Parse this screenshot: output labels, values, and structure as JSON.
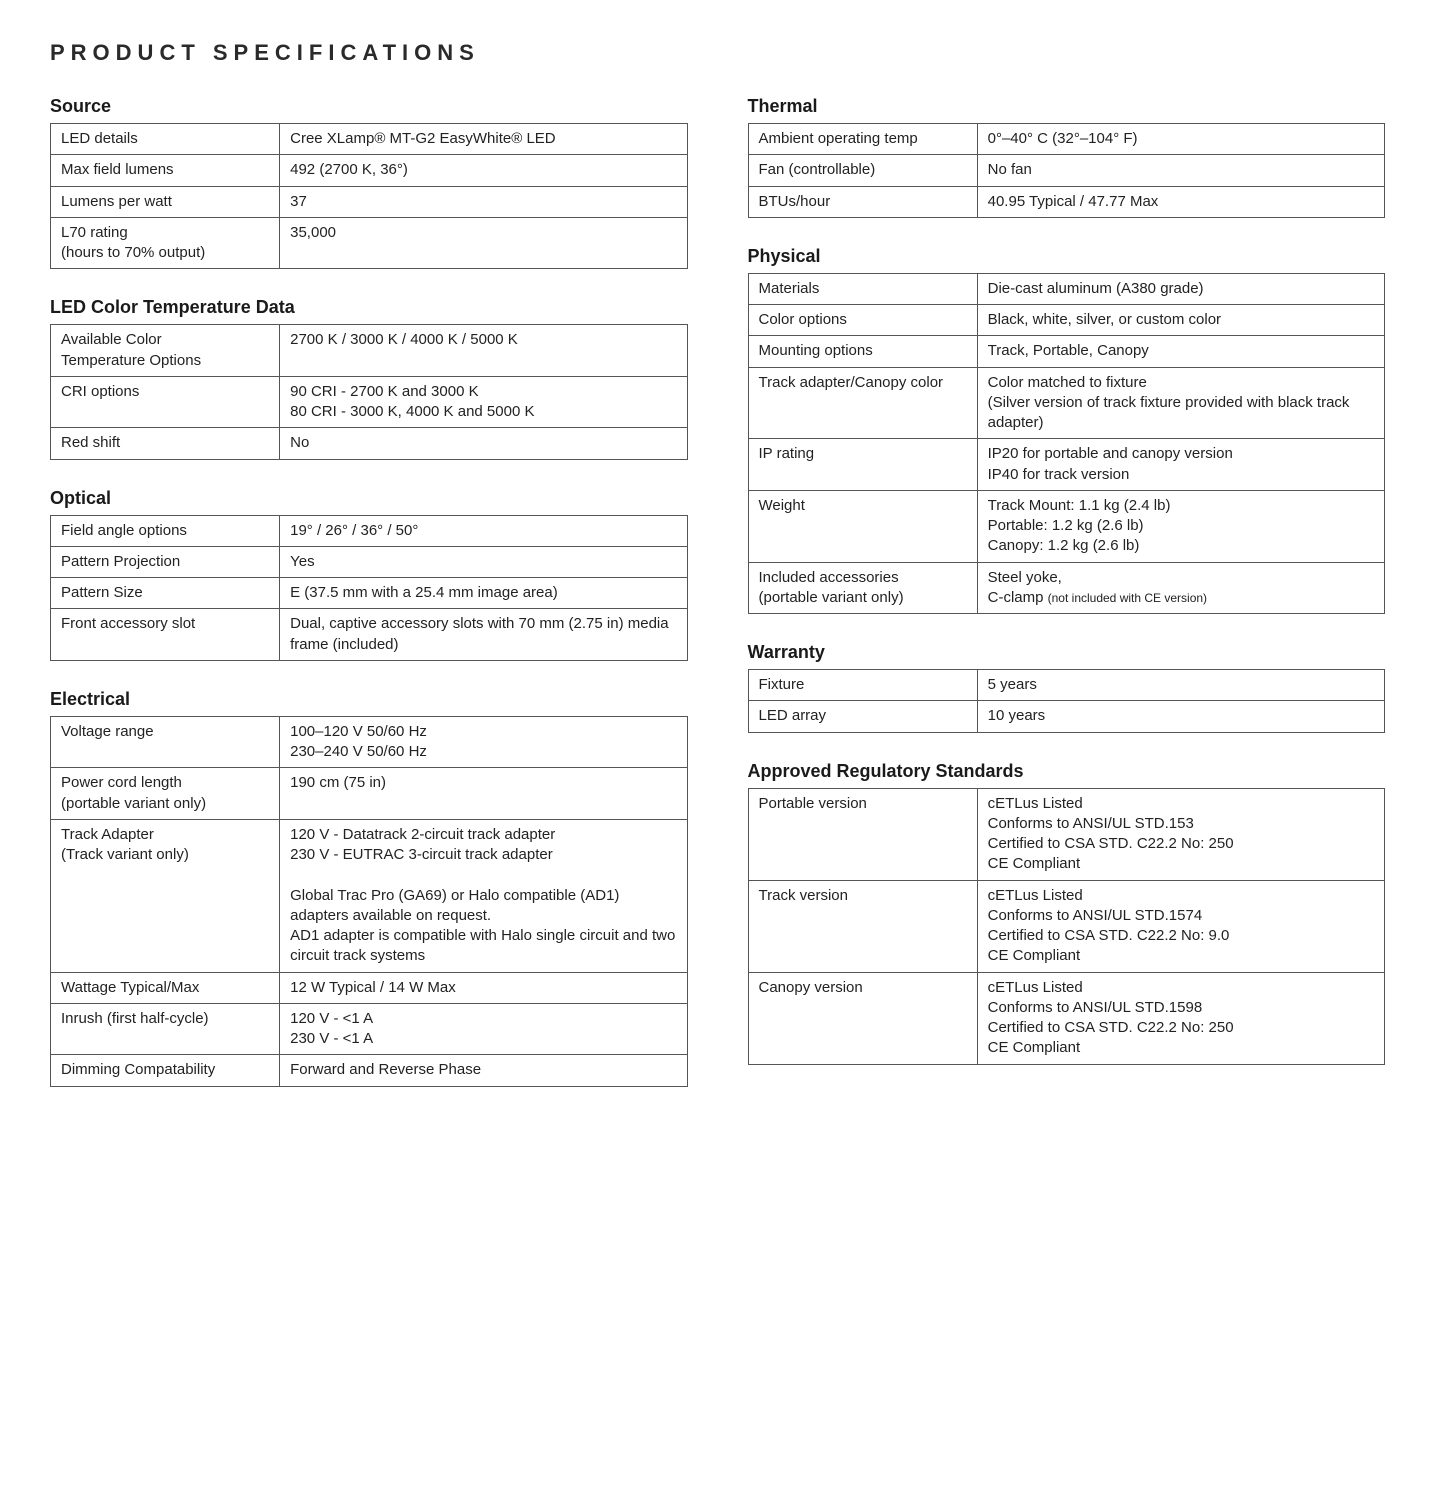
{
  "pageTitle": "PRODUCT SPECIFICATIONS",
  "leftSections": [
    {
      "title": "Source",
      "rows": [
        {
          "label": "LED details",
          "value": "Cree XLamp® MT-G2 EasyWhite® LED"
        },
        {
          "label": "Max field lumens",
          "value": "492 (2700 K, 36°)"
        },
        {
          "label": "Lumens per watt",
          "value": "37"
        },
        {
          "label": "L70 rating\n(hours to 70% output)",
          "value": "35,000"
        }
      ]
    },
    {
      "title": "LED Color Temperature Data",
      "rows": [
        {
          "label": "Available Color\nTemperature Options",
          "value": "2700 K / 3000 K / 4000 K / 5000 K"
        },
        {
          "label": "CRI options",
          "value": "90 CRI - 2700 K and 3000 K\n80 CRI - 3000 K, 4000 K and 5000 K"
        },
        {
          "label": "Red shift",
          "value": "No"
        }
      ]
    },
    {
      "title": "Optical",
      "rows": [
        {
          "label": "Field angle options",
          "value": "19° / 26° / 36° / 50°"
        },
        {
          "label": "Pattern Projection",
          "value": "Yes"
        },
        {
          "label": "Pattern Size",
          "value": "E (37.5 mm with a 25.4 mm image area)"
        },
        {
          "label": "Front accessory slot",
          "value": "Dual, captive accessory slots with 70 mm (2.75 in) media frame (included)"
        }
      ]
    },
    {
      "title": "Electrical",
      "rows": [
        {
          "label": "Voltage range",
          "value": "100–120 V 50/60 Hz\n230–240 V 50/60 Hz"
        },
        {
          "label": "Power cord length\n(portable variant only)",
          "value": "190 cm (75 in)"
        },
        {
          "label": "Track Adapter\n(Track variant only)",
          "value": "120 V - Datatrack 2-circuit track adapter\n230 V - EUTRAC 3-circuit track adapter\n\nGlobal Trac Pro (GA69) or Halo compatible (AD1) adapters available on request.\nAD1 adapter is compatible with Halo single circuit and two circuit track systems"
        },
        {
          "label": "Wattage Typical/Max",
          "value": "12 W Typical / 14 W Max"
        },
        {
          "label": "Inrush (first half-cycle)",
          "value": "120 V - <1 A\n230 V - <1 A"
        },
        {
          "label": "Dimming Compatability",
          "value": "Forward and Reverse Phase"
        }
      ]
    }
  ],
  "rightSections": [
    {
      "title": "Thermal",
      "rows": [
        {
          "label": "Ambient operating temp",
          "value": "0°–40° C (32°–104° F)"
        },
        {
          "label": "Fan (controllable)",
          "value": "No fan"
        },
        {
          "label": "BTUs/hour",
          "value": "40.95 Typical / 47.77 Max"
        }
      ]
    },
    {
      "title": "Physical",
      "rows": [
        {
          "label": "Materials",
          "value": "Die-cast aluminum (A380 grade)"
        },
        {
          "label": "Color options",
          "value": "Black, white, silver, or custom color"
        },
        {
          "label": "Mounting options",
          "value": "Track, Portable, Canopy"
        },
        {
          "label": "Track adapter/Canopy color",
          "value": "Color matched to fixture\n(Silver version of track fixture provided with black track adapter)"
        },
        {
          "label": "IP rating",
          "value": "IP20 for portable and canopy version\nIP40 for track version"
        },
        {
          "label": "Weight",
          "value": "Track Mount: 1.1 kg (2.4 lb)\nPortable: 1.2 kg (2.6 lb)\nCanopy: 1.2 kg (2.6 lb)"
        },
        {
          "label": "Included accessories\n(portable variant only)",
          "value": "Steel yoke,\nC-clamp ",
          "valueNote": "(not included with CE version)"
        }
      ]
    },
    {
      "title": "Warranty",
      "rows": [
        {
          "label": "Fixture",
          "value": "5 years"
        },
        {
          "label": "LED array",
          "value": "10 years"
        }
      ]
    },
    {
      "title": "Approved Regulatory Standards",
      "rows": [
        {
          "label": "Portable version",
          "value": "cETLus Listed\nConforms to ANSI/UL STD.153\nCertified to CSA STD. C22.2 No: 250\nCE Compliant"
        },
        {
          "label": "Track version",
          "value": "cETLus Listed\nConforms to ANSI/UL STD.1574\nCertified to CSA STD. C22.2 No: 9.0\nCE Compliant"
        },
        {
          "label": "Canopy version",
          "value": "cETLus Listed\nConforms to ANSI/UL STD.1598\nCertified to CSA STD. C22.2 No: 250\nCE Compliant"
        }
      ]
    }
  ],
  "styling": {
    "background_color": "#ffffff",
    "text_color": "#222222",
    "border_color": "#555555",
    "title_letter_spacing": "6px",
    "title_fontsize": 22,
    "section_title_fontsize": 18,
    "body_fontsize": 15,
    "font_family": "Arial, Helvetica, sans-serif",
    "first_col_width_pct": 36
  }
}
